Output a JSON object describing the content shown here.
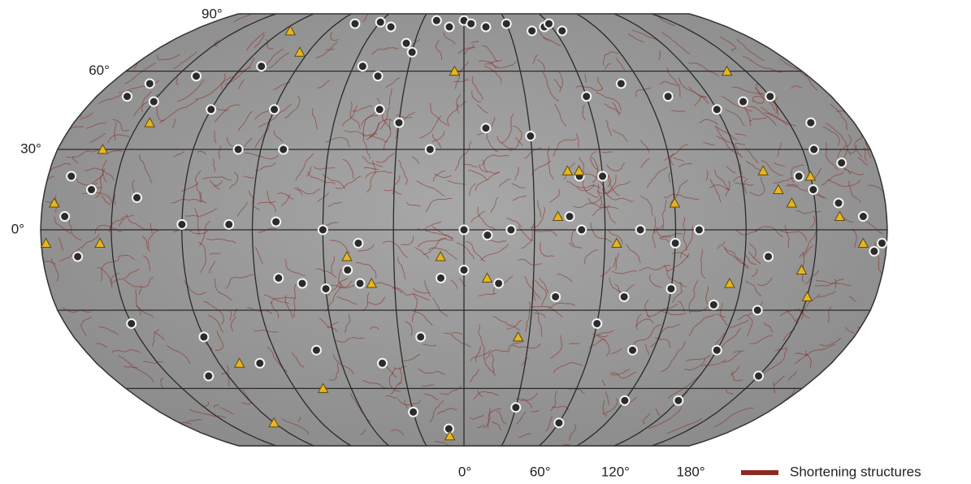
{
  "map": {
    "lat_ticks": [
      {
        "value": 90,
        "label": "90°"
      },
      {
        "value": 60,
        "label": "60°"
      },
      {
        "value": 30,
        "label": "30°"
      },
      {
        "value": 0,
        "label": "0°"
      }
    ],
    "lon_ticks": [
      {
        "value": 0,
        "label": "0°"
      },
      {
        "value": 60,
        "label": "60°"
      },
      {
        "value": 120,
        "label": "120°"
      },
      {
        "value": 180,
        "label": "180°"
      }
    ],
    "legend": {
      "label": "Shortening structures",
      "color": "#8b2a22"
    },
    "circles": [
      [
        -77,
        82
      ],
      [
        -60,
        83
      ],
      [
        -50,
        80
      ],
      [
        -20,
        84
      ],
      [
        -10,
        80
      ],
      [
        0,
        84
      ],
      [
        5,
        82
      ],
      [
        15,
        80
      ],
      [
        30,
        82
      ],
      [
        45,
        78
      ],
      [
        55,
        80
      ],
      [
        60,
        82
      ],
      [
        65,
        78
      ],
      [
        -35,
        72
      ],
      [
        -30,
        68
      ],
      [
        -45,
        58
      ],
      [
        -55,
        62
      ],
      [
        -110,
        62
      ],
      [
        -140,
        58
      ],
      [
        -160,
        55
      ],
      [
        -165,
        50
      ],
      [
        -150,
        48
      ],
      [
        -120,
        45
      ],
      [
        -90,
        45
      ],
      [
        -40,
        45
      ],
      [
        -30,
        40
      ],
      [
        -15,
        30
      ],
      [
        10,
        38
      ],
      [
        30,
        35
      ],
      [
        60,
        50
      ],
      [
        80,
        55
      ],
      [
        100,
        50
      ],
      [
        120,
        45
      ],
      [
        135,
        48
      ],
      [
        150,
        50
      ],
      [
        160,
        40
      ],
      [
        155,
        30
      ],
      [
        165,
        25
      ],
      [
        145,
        20
      ],
      [
        150,
        15
      ],
      [
        160,
        10
      ],
      [
        170,
        5
      ],
      [
        -170,
        20
      ],
      [
        -160,
        15
      ],
      [
        -140,
        12
      ],
      [
        -120,
        2
      ],
      [
        -100,
        2
      ],
      [
        -80,
        3
      ],
      [
        -60,
        0
      ],
      [
        -45,
        -5
      ],
      [
        -50,
        -15
      ],
      [
        -45,
        -20
      ],
      [
        -60,
        -22
      ],
      [
        -70,
        -20
      ],
      [
        -80,
        -18
      ],
      [
        0,
        -15
      ],
      [
        -10,
        -18
      ],
      [
        15,
        -20
      ],
      [
        40,
        -25
      ],
      [
        70,
        -25
      ],
      [
        90,
        -22
      ],
      [
        110,
        -28
      ],
      [
        130,
        -30
      ],
      [
        120,
        -45
      ],
      [
        80,
        -45
      ],
      [
        60,
        -35
      ],
      [
        -20,
        -40
      ],
      [
        -40,
        -50
      ],
      [
        -70,
        -45
      ],
      [
        -100,
        -50
      ],
      [
        -120,
        -40
      ],
      [
        -150,
        -35
      ],
      [
        -130,
        -55
      ],
      [
        -30,
        -70
      ],
      [
        -10,
        -78
      ],
      [
        30,
        -68
      ],
      [
        60,
        -75
      ],
      [
        90,
        -65
      ],
      [
        120,
        -65
      ],
      [
        150,
        -55
      ],
      [
        -165,
        -10
      ],
      [
        -170,
        5
      ],
      [
        0,
        0
      ],
      [
        10,
        -2
      ],
      [
        20,
        0
      ],
      [
        45,
        5
      ],
      [
        50,
        0
      ],
      [
        75,
        0
      ],
      [
        90,
        -5
      ],
      [
        60,
        20
      ],
      [
        50,
        20
      ],
      [
        -100,
        30
      ],
      [
        -80,
        30
      ],
      [
        100,
        0
      ],
      [
        130,
        -10
      ],
      [
        175,
        -8
      ],
      [
        178,
        -5
      ]
    ],
    "triangles": [
      [
        -115,
        78
      ],
      [
        -95,
        68
      ],
      [
        -145,
        40
      ],
      [
        -160,
        30
      ],
      [
        -175,
        10
      ],
      [
        -178,
        -5
      ],
      [
        -155,
        -5
      ],
      [
        -40,
        -20
      ],
      [
        -50,
        -10
      ],
      [
        -10,
        -10
      ],
      [
        10,
        -18
      ],
      [
        25,
        -40
      ],
      [
        -110,
        -50
      ],
      [
        -75,
        -60
      ],
      [
        -120,
        -75
      ],
      [
        -10,
        -82
      ],
      [
        -5,
        60
      ],
      [
        45,
        22
      ],
      [
        50,
        22
      ],
      [
        40,
        5
      ],
      [
        65,
        -5
      ],
      [
        90,
        10
      ],
      [
        115,
        -20
      ],
      [
        130,
        22
      ],
      [
        135,
        15
      ],
      [
        140,
        10
      ],
      [
        150,
        20
      ],
      [
        160,
        5
      ],
      [
        170,
        -5
      ],
      [
        145,
        -15
      ],
      [
        150,
        -25
      ],
      [
        140,
        60
      ]
    ]
  }
}
